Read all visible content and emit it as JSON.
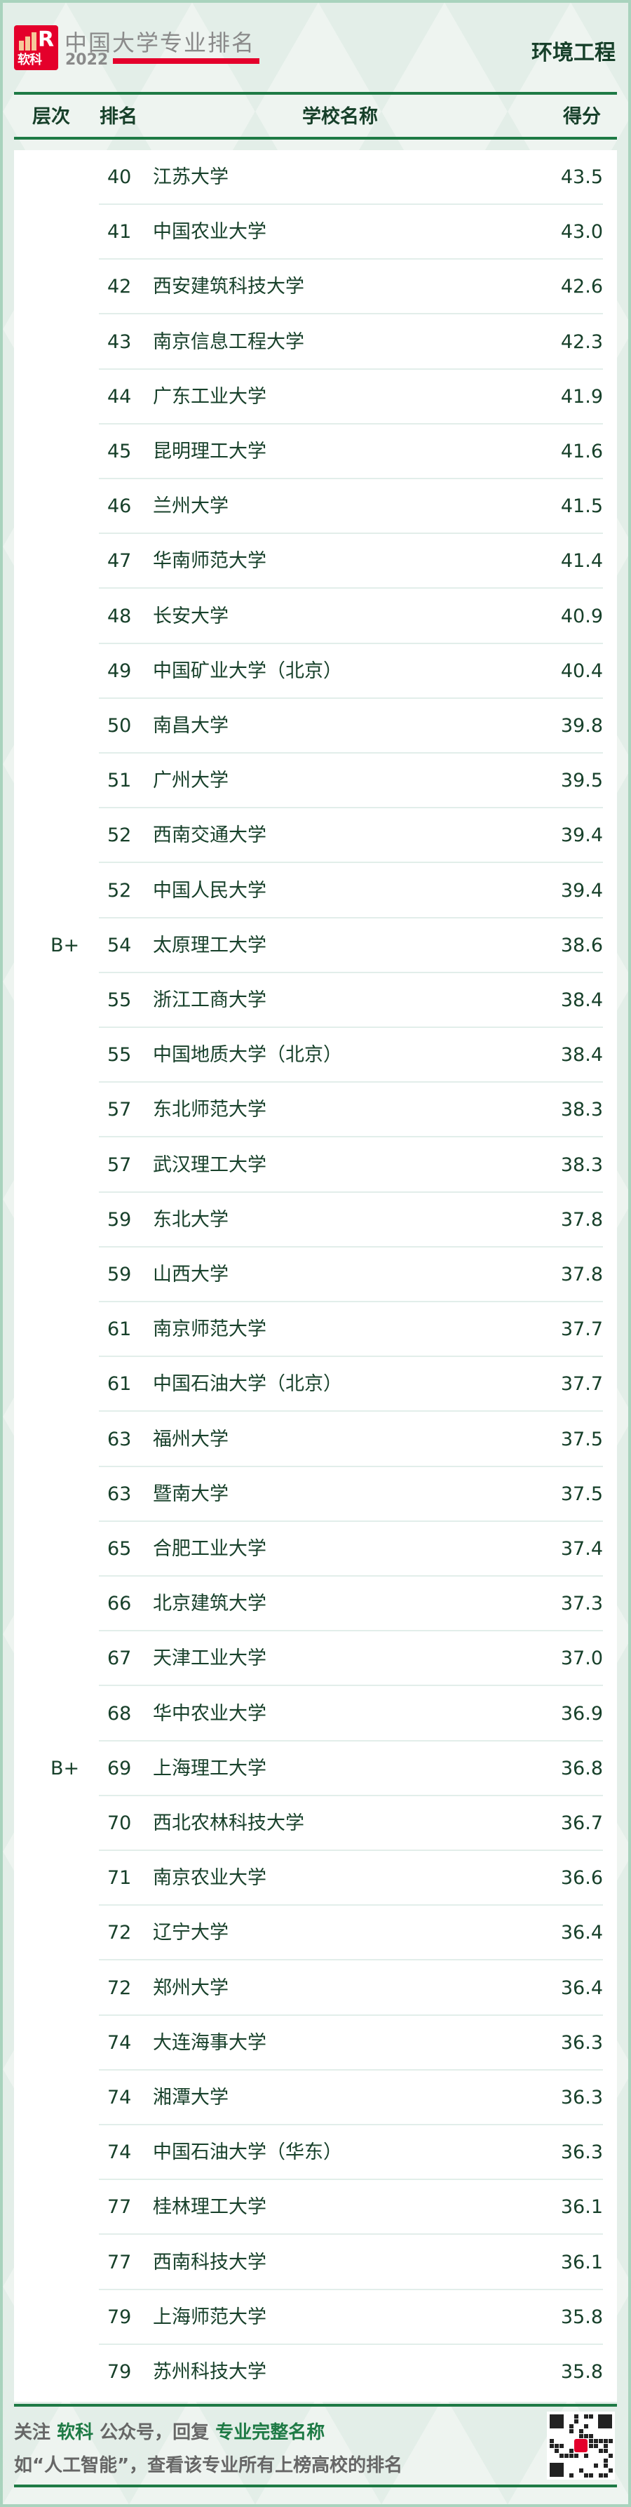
{
  "header": {
    "logo_text": "软科",
    "brand_title": "中国大学专业排名",
    "year": "2022",
    "major": "环境工程",
    "columns": {
      "tier": "层次",
      "rank": "排名",
      "name": "学校名称",
      "score": "得分"
    }
  },
  "colors": {
    "accent_green": "#1e7a45",
    "brand_red": "#e4002b",
    "text": "#17402a"
  },
  "rows": [
    {
      "tier": "",
      "rank": "40",
      "name": "江苏大学",
      "score": "43.5"
    },
    {
      "tier": "",
      "rank": "41",
      "name": "中国农业大学",
      "score": "43.0"
    },
    {
      "tier": "",
      "rank": "42",
      "name": "西安建筑科技大学",
      "score": "42.6"
    },
    {
      "tier": "",
      "rank": "43",
      "name": "南京信息工程大学",
      "score": "42.3"
    },
    {
      "tier": "",
      "rank": "44",
      "name": "广东工业大学",
      "score": "41.9"
    },
    {
      "tier": "",
      "rank": "45",
      "name": "昆明理工大学",
      "score": "41.6"
    },
    {
      "tier": "",
      "rank": "46",
      "name": "兰州大学",
      "score": "41.5"
    },
    {
      "tier": "",
      "rank": "47",
      "name": "华南师范大学",
      "score": "41.4"
    },
    {
      "tier": "",
      "rank": "48",
      "name": "长安大学",
      "score": "40.9"
    },
    {
      "tier": "",
      "rank": "49",
      "name": "中国矿业大学（北京）",
      "score": "40.4"
    },
    {
      "tier": "",
      "rank": "50",
      "name": "南昌大学",
      "score": "39.8"
    },
    {
      "tier": "",
      "rank": "51",
      "name": "广州大学",
      "score": "39.5"
    },
    {
      "tier": "",
      "rank": "52",
      "name": "西南交通大学",
      "score": "39.4"
    },
    {
      "tier": "",
      "rank": "52",
      "name": "中国人民大学",
      "score": "39.4"
    },
    {
      "tier": "B+",
      "rank": "54",
      "name": "太原理工大学",
      "score": "38.6"
    },
    {
      "tier": "",
      "rank": "55",
      "name": "浙江工商大学",
      "score": "38.4"
    },
    {
      "tier": "",
      "rank": "55",
      "name": "中国地质大学（北京）",
      "score": "38.4"
    },
    {
      "tier": "",
      "rank": "57",
      "name": "东北师范大学",
      "score": "38.3"
    },
    {
      "tier": "",
      "rank": "57",
      "name": "武汉理工大学",
      "score": "38.3"
    },
    {
      "tier": "",
      "rank": "59",
      "name": "东北大学",
      "score": "37.8"
    },
    {
      "tier": "",
      "rank": "59",
      "name": "山西大学",
      "score": "37.8"
    },
    {
      "tier": "",
      "rank": "61",
      "name": "南京师范大学",
      "score": "37.7"
    },
    {
      "tier": "",
      "rank": "61",
      "name": "中国石油大学（北京）",
      "score": "37.7"
    },
    {
      "tier": "",
      "rank": "63",
      "name": "福州大学",
      "score": "37.5"
    },
    {
      "tier": "",
      "rank": "63",
      "name": "暨南大学",
      "score": "37.5"
    },
    {
      "tier": "",
      "rank": "65",
      "name": "合肥工业大学",
      "score": "37.4"
    },
    {
      "tier": "",
      "rank": "66",
      "name": "北京建筑大学",
      "score": "37.3"
    },
    {
      "tier": "",
      "rank": "67",
      "name": "天津工业大学",
      "score": "37.0"
    },
    {
      "tier": "",
      "rank": "68",
      "name": "华中农业大学",
      "score": "36.9"
    },
    {
      "tier": "B+",
      "rank": "69",
      "name": "上海理工大学",
      "score": "36.8"
    },
    {
      "tier": "",
      "rank": "70",
      "name": "西北农林科技大学",
      "score": "36.7"
    },
    {
      "tier": "",
      "rank": "71",
      "name": "南京农业大学",
      "score": "36.6"
    },
    {
      "tier": "",
      "rank": "72",
      "name": "辽宁大学",
      "score": "36.4"
    },
    {
      "tier": "",
      "rank": "72",
      "name": "郑州大学",
      "score": "36.4"
    },
    {
      "tier": "",
      "rank": "74",
      "name": "大连海事大学",
      "score": "36.3"
    },
    {
      "tier": "",
      "rank": "74",
      "name": "湘潭大学",
      "score": "36.3"
    },
    {
      "tier": "",
      "rank": "74",
      "name": "中国石油大学（华东）",
      "score": "36.3"
    },
    {
      "tier": "",
      "rank": "77",
      "name": "桂林理工大学",
      "score": "36.1"
    },
    {
      "tier": "",
      "rank": "77",
      "name": "西南科技大学",
      "score": "36.1"
    },
    {
      "tier": "",
      "rank": "79",
      "name": "上海师范大学",
      "score": "35.8"
    },
    {
      "tier": "",
      "rank": "79",
      "name": "苏州科技大学",
      "score": "35.8"
    }
  ],
  "footer": {
    "line1": [
      "关注 ",
      "软科",
      " 公众号，回复 ",
      "专业完整名称"
    ],
    "line2": "如“人工智能”，查看该专业所有上榜高校的排名",
    "qr_icon": "qr-code"
  }
}
